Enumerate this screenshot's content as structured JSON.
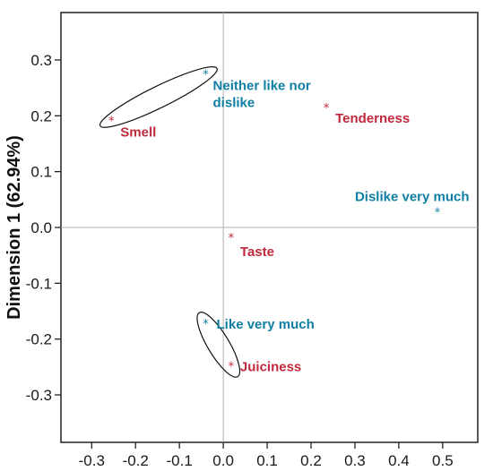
{
  "chart_data": {
    "type": "scatter",
    "title": "",
    "xlabel": "",
    "ylabel": "Dimension 1 (62.94%)",
    "xlim": [
      -0.37,
      0.58
    ],
    "ylim": [
      -0.385,
      0.385
    ],
    "x_ticks": [
      -0.3,
      -0.2,
      -0.1,
      0.0,
      0.1,
      0.2,
      0.3,
      0.4,
      0.5
    ],
    "x_tick_labels": [
      "-0.3",
      "-0.2",
      "-0.1",
      "0.0",
      "0.1",
      "0.2",
      "0.3",
      "0.4",
      "0.5"
    ],
    "y_ticks": [
      0.3,
      0.2,
      0.1,
      0.0,
      -0.1,
      -0.2,
      -0.3
    ],
    "y_tick_labels": [
      "0.3",
      "0.2",
      "0.1",
      "0.0",
      "-0.1",
      "-0.2",
      "-0.3"
    ],
    "grid": false,
    "reference_lines": [
      0,
      0
    ],
    "colors": {
      "attribute": "#c0283c",
      "hedonic": "#0e7fa3"
    },
    "points": [
      {
        "label": "Smell",
        "group": "attribute",
        "x": -0.255,
        "y": 0.192,
        "label_dx": 10,
        "label_dy": 18
      },
      {
        "label": "Tenderness",
        "group": "attribute",
        "x": 0.235,
        "y": 0.215,
        "label_dx": 10,
        "label_dy": 17
      },
      {
        "label": "Taste",
        "group": "attribute",
        "x": 0.018,
        "y": -0.018,
        "label_dx": 10,
        "label_dy": 21
      },
      {
        "label": "Juiciness",
        "group": "attribute",
        "x": 0.018,
        "y": -0.248,
        "label_dx": 10,
        "label_dy": 6
      },
      {
        "label": "Neither like nor\ndislike",
        "group": "hedonic",
        "x": -0.04,
        "y": 0.275,
        "label_dx": 8,
        "label_dy": 18
      },
      {
        "label": "Dislike very much",
        "group": "hedonic",
        "x": 0.488,
        "y": 0.028,
        "label_dx": -92,
        "label_dy": -12
      },
      {
        "label": "Like very much",
        "group": "hedonic",
        "x": -0.04,
        "y": -0.172,
        "label_dx": 12,
        "label_dy": 6
      }
    ],
    "clusters": [
      {
        "members": [
          "Smell",
          "Neither like nor\ndislike"
        ]
      },
      {
        "members": [
          "Like very much",
          "Juiciness"
        ]
      }
    ]
  }
}
